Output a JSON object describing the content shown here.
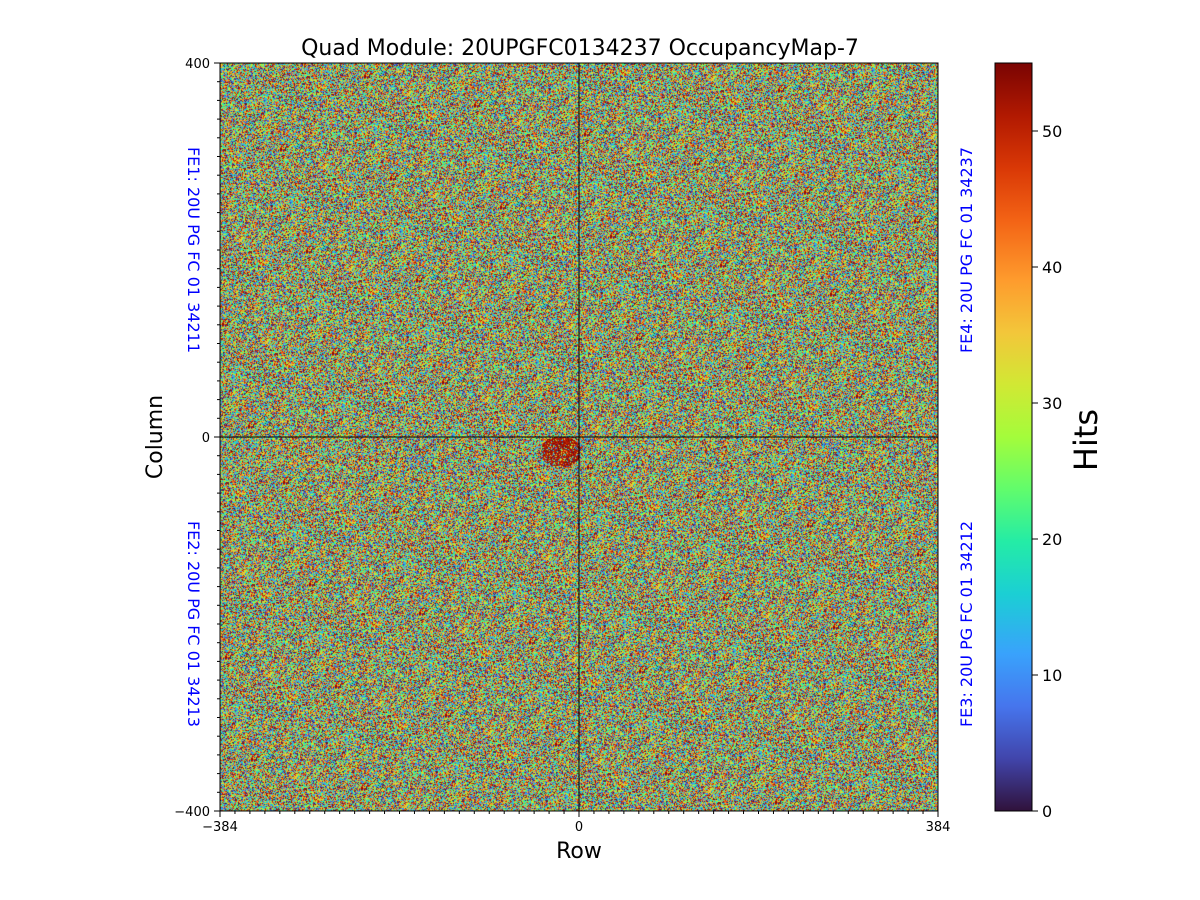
{
  "chart_data": {
    "type": "heatmap",
    "title": "Quad Module: 20UPGFC0134237 OccupancyMap-7",
    "xlabel": "Row",
    "ylabel": "Column",
    "xlim": [
      -384,
      384
    ],
    "ylim": [
      -400,
      400
    ],
    "x_ticks": [
      "−384",
      "0",
      "384"
    ],
    "y_ticks": [
      "400",
      "0",
      "−400"
    ],
    "x_tick_values": [
      -384,
      0,
      384
    ],
    "y_tick_values": [
      400,
      0,
      -400
    ],
    "colorbar": {
      "label": "Hits",
      "range": [
        0,
        55
      ],
      "ticks": [
        0,
        10,
        20,
        30,
        40,
        50
      ],
      "tick_labels": [
        "0",
        "10",
        "20",
        "30",
        "40",
        "50"
      ],
      "colormap": "turbo"
    },
    "quadrants": [
      {
        "name": "FE1",
        "label": "FE1: 20U PG FC 01 34211",
        "position": "top-left",
        "x_range": [
          -384,
          0
        ],
        "y_range": [
          0,
          400
        ]
      },
      {
        "name": "FE4",
        "label": "FE4: 20U PG FC 01 34237",
        "position": "top-right",
        "x_range": [
          0,
          384
        ],
        "y_range": [
          0,
          400
        ]
      },
      {
        "name": "FE2",
        "label": "FE2: 20U PG FC 01 34213",
        "position": "bottom-left",
        "x_range": [
          -384,
          0
        ],
        "y_range": [
          -400,
          0
        ]
      },
      {
        "name": "FE3",
        "label": "FE3: 20U PG FC 01 34212",
        "position": "bottom-right",
        "x_range": [
          0,
          384
        ],
        "y_range": [
          -400,
          0
        ]
      }
    ],
    "distribution": "approximately uniform random hits 0-55 per pixel across all four front-ends",
    "hotspot": {
      "x_range": [
        -40,
        0
      ],
      "y_range": [
        -30,
        0
      ],
      "description": "small dark-red cluster near origin"
    }
  },
  "colors": {
    "fe_label": "#0000ff",
    "divider": "#000000"
  }
}
